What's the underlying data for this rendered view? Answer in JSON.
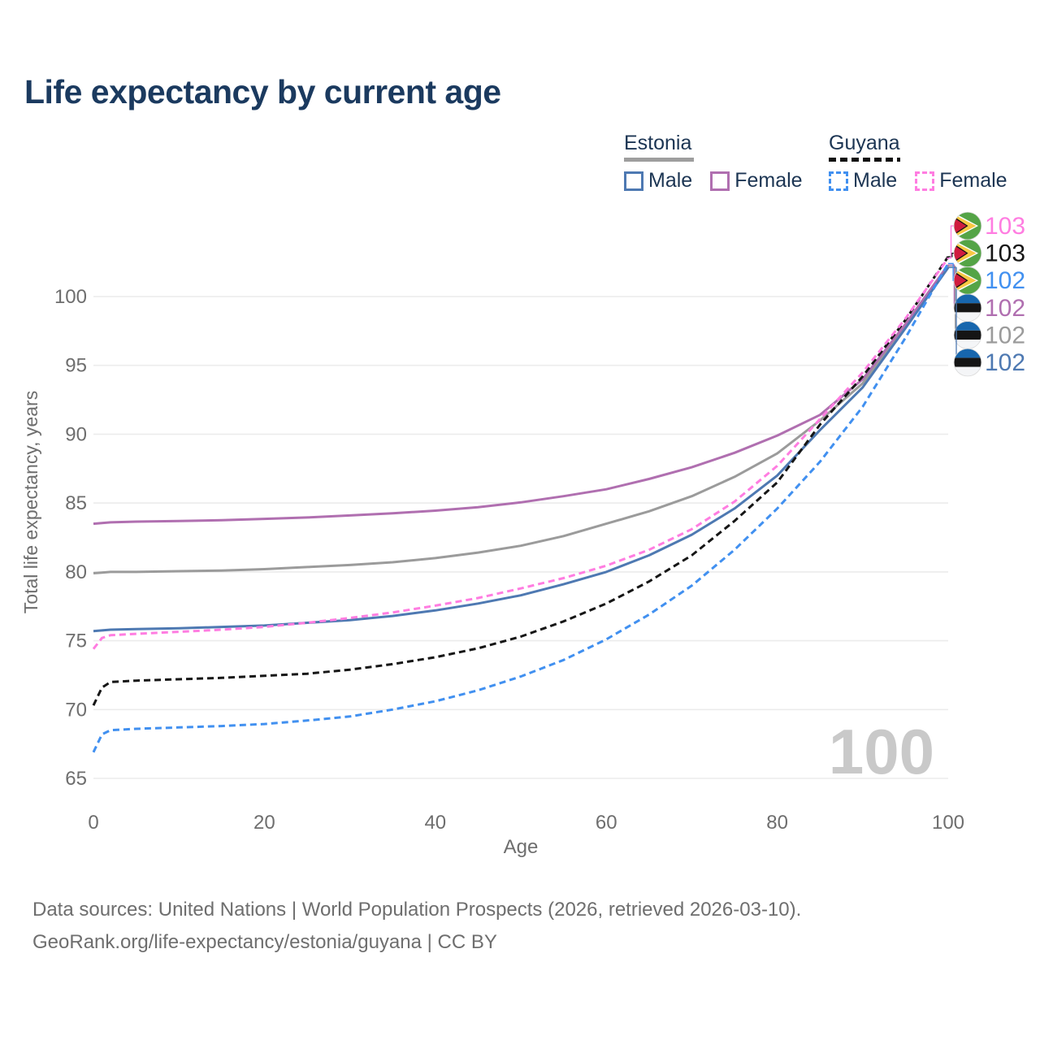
{
  "title": "Life expectancy by current age",
  "legend": {
    "groups": [
      {
        "country": "Estonia",
        "underline_style": "solid",
        "underline_color": "#9e9e9e",
        "items": [
          {
            "key": "estonia_male",
            "label": "Male"
          },
          {
            "key": "estonia_female",
            "label": "Female"
          }
        ]
      },
      {
        "country": "Guyana",
        "underline_style": "dashed",
        "underline_color": "#111111",
        "items": [
          {
            "key": "guyana_male",
            "label": "Male"
          },
          {
            "key": "guyana_female",
            "label": "Female"
          }
        ]
      }
    ]
  },
  "chart_data": {
    "type": "line",
    "title": "Life expectancy by current age",
    "xlabel": "Age",
    "ylabel": "Total life expectancy, years",
    "x_ticks": [
      0,
      20,
      40,
      60,
      80,
      100
    ],
    "y_ticks": [
      65,
      70,
      75,
      80,
      85,
      90,
      95,
      100
    ],
    "xlim": [
      0,
      100
    ],
    "ylim": [
      65,
      103.5
    ],
    "grid": true,
    "legend_position": "top-right",
    "watermark": "100",
    "ages": [
      0,
      1,
      2,
      5,
      10,
      15,
      20,
      25,
      30,
      35,
      40,
      45,
      50,
      55,
      60,
      65,
      70,
      75,
      80,
      85,
      90,
      95,
      100
    ],
    "series": [
      {
        "key": "estonia_total",
        "name": "Estonia",
        "color": "#9b9b9b",
        "dash": "solid",
        "flag": "estonia",
        "end_label": "102",
        "label_row": 4,
        "values": [
          79.9,
          79.95,
          80.0,
          80.0,
          80.05,
          80.1,
          80.2,
          80.35,
          80.5,
          80.7,
          81.0,
          81.4,
          81.9,
          82.6,
          83.5,
          84.4,
          85.5,
          86.9,
          88.6,
          91.0,
          93.7,
          97.9,
          102.2
        ]
      },
      {
        "key": "estonia_female",
        "name": "Estonia Female",
        "color": "#b06fb0",
        "dash": "solid",
        "flag": "estonia",
        "end_label": "102",
        "label_row": 3,
        "values": [
          83.5,
          83.55,
          83.6,
          83.65,
          83.7,
          83.75,
          83.85,
          83.95,
          84.1,
          84.25,
          84.45,
          84.7,
          85.05,
          85.5,
          86.0,
          86.75,
          87.6,
          88.65,
          89.9,
          91.4,
          94.0,
          98.0,
          102.3
        ]
      },
      {
        "key": "estonia_male",
        "name": "Estonia Male",
        "color": "#4e79b2",
        "dash": "solid",
        "flag": "estonia",
        "end_label": "102",
        "label_row": 5,
        "values": [
          75.7,
          75.75,
          75.8,
          75.85,
          75.9,
          76.0,
          76.1,
          76.3,
          76.5,
          76.8,
          77.2,
          77.7,
          78.3,
          79.1,
          80.0,
          81.2,
          82.7,
          84.6,
          87.0,
          90.3,
          93.4,
          97.7,
          102.1
        ]
      },
      {
        "key": "guyana_male",
        "name": "Guyana Male",
        "color": "#4190f0",
        "dash": "dashed",
        "flag": "guyana",
        "end_label": "102",
        "label_row": 2,
        "values": [
          66.9,
          68.2,
          68.5,
          68.6,
          68.7,
          68.8,
          68.95,
          69.2,
          69.5,
          70.0,
          70.6,
          71.4,
          72.4,
          73.6,
          75.1,
          76.9,
          79.0,
          81.6,
          84.6,
          88.0,
          92.0,
          97.0,
          102.4
        ]
      },
      {
        "key": "guyana_total",
        "name": "Guyana",
        "color": "#161616",
        "dash": "dashed",
        "flag": "guyana",
        "end_label": "103",
        "label_row": 1,
        "values": [
          70.3,
          71.6,
          72.0,
          72.1,
          72.2,
          72.3,
          72.45,
          72.6,
          72.9,
          73.3,
          73.8,
          74.45,
          75.3,
          76.4,
          77.7,
          79.3,
          81.2,
          83.7,
          86.5,
          90.7,
          94.2,
          98.3,
          102.9
        ]
      },
      {
        "key": "guyana_female",
        "name": "Guyana Female",
        "color": "#ff7de1",
        "dash": "dashed",
        "flag": "guyana",
        "end_label": "103",
        "label_row": 0,
        "values": [
          74.4,
          75.2,
          75.4,
          75.5,
          75.65,
          75.8,
          76.0,
          76.3,
          76.65,
          77.05,
          77.55,
          78.1,
          78.8,
          79.55,
          80.45,
          81.6,
          83.1,
          85.1,
          87.7,
          91.1,
          94.5,
          98.4,
          102.8
        ]
      }
    ],
    "colors": {
      "grid": "#ececec",
      "tick_text": "#6e6e6e",
      "watermark": "#c9c9c9",
      "estonia_flag_blue": "#1766ad",
      "estonia_flag_black": "#151515",
      "estonia_flag_white": "#f4f5f7",
      "guyana_flag_green": "#54a446",
      "guyana_flag_yellow": "#f7c843",
      "guyana_flag_red": "#d01c3f"
    }
  },
  "footer": {
    "line1": "Data sources: United Nations | World Population Prospects (2026, retrieved 2026-03-10).",
    "line2": "GeoRank.org/life-expectancy/estonia/guyana | CC BY"
  }
}
